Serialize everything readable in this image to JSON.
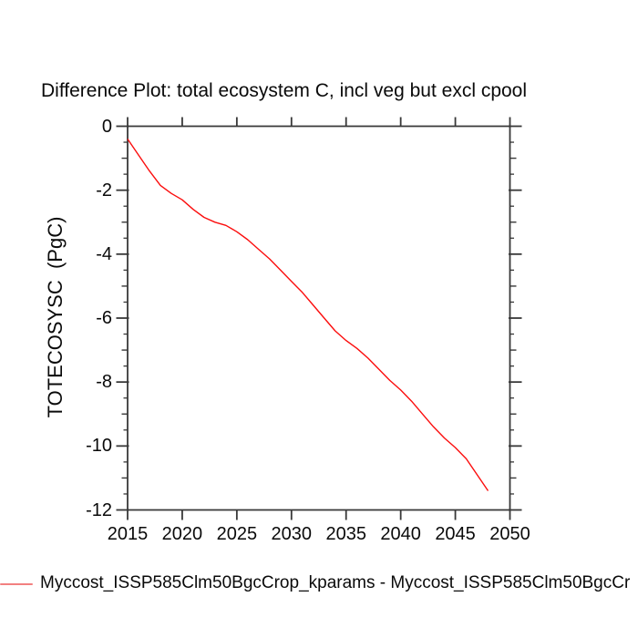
{
  "title": "Difference Plot: total ecosystem C, incl veg but excl cpool",
  "colors": {
    "background": "#ffffff",
    "axis": "#383838",
    "text": "#0a0a0a",
    "curve": "#fb0d0d",
    "legend_marker": "#f28080"
  },
  "legend": {
    "label": "Myccost_ISSP585Clm50BgcCrop_kparams - Myccost_ISSP585Clm50BgcCr",
    "marker_color": "#f28080"
  },
  "chart_data": {
    "type": "line",
    "title": "Difference Plot: total ecosystem C, incl veg but excl cpool",
    "xlabel": "",
    "ylabel": "TOTECOSYSC  (PgC)",
    "xlim": [
      2015,
      2050
    ],
    "ylim": [
      -12,
      0
    ],
    "grid": false,
    "legend_position": "bottom-left",
    "x_ticks": [
      2015,
      2020,
      2025,
      2030,
      2035,
      2040,
      2045,
      2050
    ],
    "y_ticks": [
      0,
      -2,
      -4,
      -6,
      -8,
      -10,
      -12
    ],
    "y_minor_ticks": [
      -1,
      -3,
      -5,
      -7,
      -9,
      -11
    ],
    "y_minor_ticks_small": [
      -0.5,
      -1.5,
      -2.5,
      -3.5,
      -4.5,
      -5.5,
      -6.5,
      -7.5,
      -8.5,
      -9.5,
      -10.5,
      -11.5
    ],
    "series": [
      {
        "name": "Myccost_ISSP585Clm50BgcCrop_kparams - Myccost_ISSP585Clm50BgcCr",
        "color": "#fb0d0d",
        "x": [
          2015,
          2016,
          2017,
          2018,
          2019,
          2020,
          2021,
          2022,
          2023,
          2024,
          2025,
          2026,
          2027,
          2028,
          2029,
          2030,
          2031,
          2032,
          2033,
          2034,
          2035,
          2036,
          2037,
          2038,
          2039,
          2040,
          2041,
          2042,
          2043,
          2044,
          2045,
          2046,
          2047,
          2048
        ],
        "values": [
          -0.4,
          -0.9,
          -1.4,
          -1.85,
          -2.1,
          -2.3,
          -2.6,
          -2.85,
          -3.0,
          -3.1,
          -3.3,
          -3.55,
          -3.85,
          -4.15,
          -4.5,
          -4.85,
          -5.2,
          -5.6,
          -6.0,
          -6.4,
          -6.7,
          -6.95,
          -7.25,
          -7.6,
          -7.95,
          -8.25,
          -8.6,
          -9.0,
          -9.4,
          -9.75,
          -10.05,
          -10.4,
          -10.9,
          -11.4
        ]
      }
    ]
  }
}
